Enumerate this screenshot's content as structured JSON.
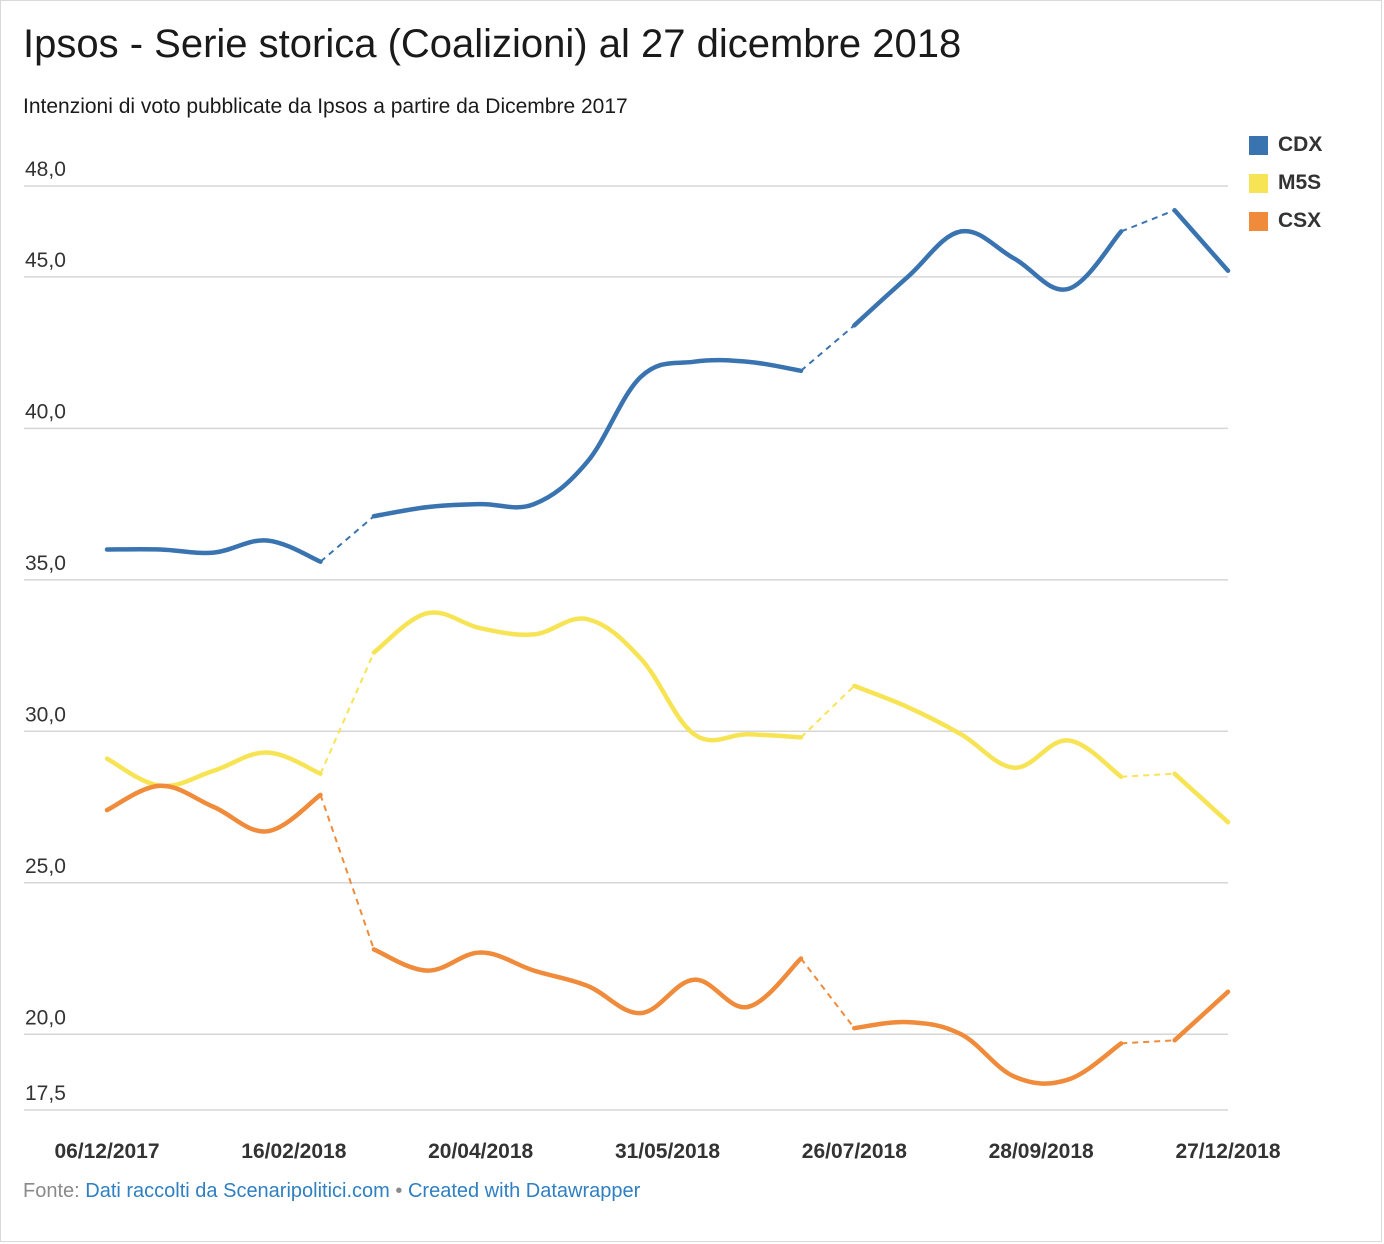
{
  "title": "Ipsos - Serie storica (Coalizioni) al 27 dicembre 2018",
  "subtitle": "Intenzioni di voto pubblicate da Ipsos a partire da Dicembre 2017",
  "footer": {
    "source_label": "Fonte:",
    "source_link": "Dati raccolti da Scenaripolitici.com",
    "separator": "•",
    "credit_link": "Created with Datawrapper"
  },
  "chart_data": {
    "type": "line",
    "x_tick_labels": [
      "06/12/2017",
      "16/02/2018",
      "20/04/2018",
      "31/05/2018",
      "26/07/2018",
      "28/09/2018",
      "27/12/2018"
    ],
    "y_tick_labels": [
      "48,0",
      "45,0",
      "40,0",
      "35,0",
      "30,0",
      "25,0",
      "20,0",
      "17,5"
    ],
    "ylim": [
      17.5,
      48.0
    ],
    "grid": true,
    "legend_position": "top-right",
    "gap_segments": [
      [
        4,
        5
      ],
      [
        13,
        14
      ],
      [
        19,
        20
      ]
    ],
    "series": [
      {
        "name": "CDX",
        "color": "#3a74b0",
        "values": [
          36.0,
          36.0,
          35.9,
          36.3,
          35.6,
          37.1,
          37.4,
          37.5,
          37.5,
          38.9,
          41.7,
          42.2,
          42.2,
          41.9,
          43.4,
          45.0,
          46.5,
          45.6,
          44.6,
          46.5,
          47.2,
          45.2
        ]
      },
      {
        "name": "M5S",
        "color": "#f7e455",
        "values": [
          29.1,
          28.2,
          28.7,
          29.3,
          28.6,
          32.6,
          33.9,
          33.4,
          33.2,
          33.7,
          32.4,
          29.9,
          29.9,
          29.8,
          31.5,
          30.8,
          29.9,
          28.8,
          29.7,
          28.5,
          28.6,
          27.0
        ]
      },
      {
        "name": "CSX",
        "color": "#ef8b3b",
        "values": [
          27.4,
          28.2,
          27.5,
          26.7,
          27.9,
          22.8,
          22.1,
          22.7,
          22.1,
          21.6,
          20.7,
          21.8,
          20.9,
          22.5,
          20.2,
          20.4,
          20.0,
          18.6,
          18.5,
          19.7,
          19.8,
          21.4
        ]
      }
    ]
  }
}
